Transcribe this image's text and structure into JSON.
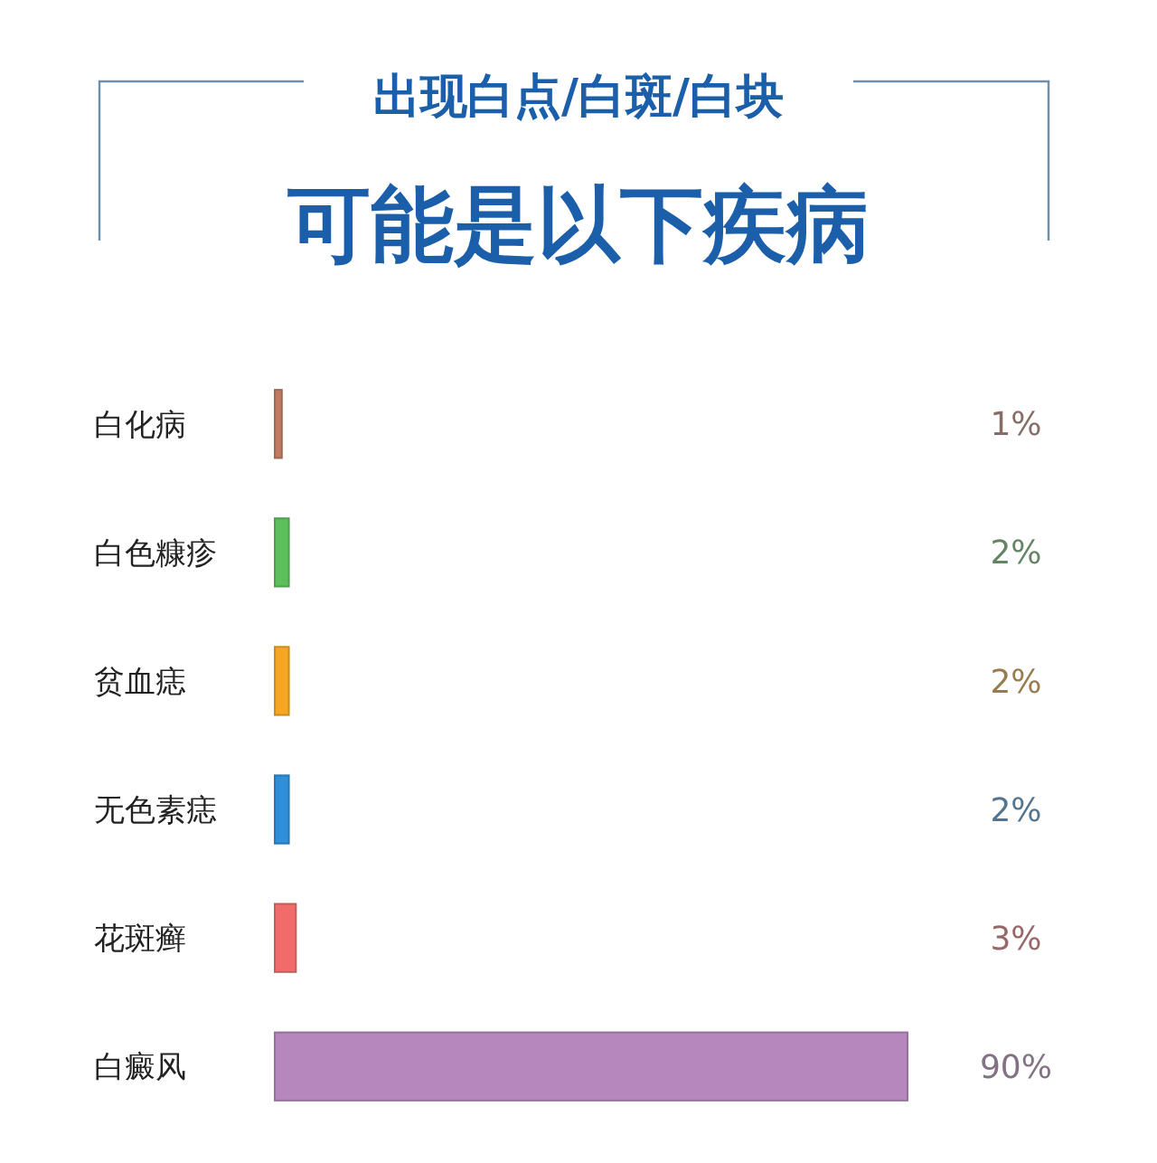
{
  "chart_data": {
    "type": "bar",
    "orientation": "horizontal",
    "title": "出现白点/白斑/白块",
    "subtitle": "可能是以下疾病",
    "categories": [
      "白化病",
      "白色糠疹",
      "贫血痣",
      "无色素痣",
      "花斑癣",
      "白癜风"
    ],
    "values": [
      1,
      2,
      2,
      2,
      3,
      90
    ],
    "colors": [
      "#c07b62",
      "#5cbf5c",
      "#f5a623",
      "#2f8fd8",
      "#f26b6b",
      "#b587bd"
    ],
    "data_labels": true,
    "value_labels": [
      "1%",
      "2%",
      "2%",
      "2%",
      "3%",
      "90%"
    ]
  }
}
